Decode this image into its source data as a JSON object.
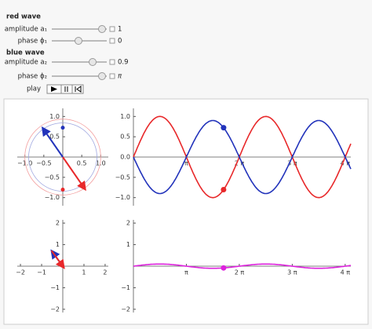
{
  "controls": {
    "red_title": "red wave",
    "a1": {
      "label": "amplitude a₁",
      "value": 1
    },
    "phi1": {
      "label": "phase ϕ₁",
      "value": 0
    },
    "blue_title": "blue wave",
    "a2": {
      "label": "amplitude a₂",
      "value": 0.9
    },
    "phi2": {
      "label": "phase ϕ₂",
      "value": 3.14159,
      "value_label": "π"
    },
    "play": "play"
  },
  "time": 5.35,
  "plots": [
    {
      "type": "phasor",
      "xlim": [
        -1.2,
        1.2
      ],
      "ylim": [
        -1.2,
        1.2
      ],
      "xticks": [
        {
          "value": -1,
          "label": "−1.0"
        },
        {
          "value": -0.5,
          "label": "−0.5"
        },
        0.5,
        {
          "value": 1,
          "label": "1.0"
        }
      ],
      "yticks": [
        {
          "value": -1,
          "label": "−1.0"
        },
        {
          "value": -0.5,
          "label": "−0.5"
        },
        0.5,
        {
          "value": 1,
          "label": "1.0"
        }
      ]
    },
    {
      "type": "waves",
      "xlim": [
        0,
        12.9
      ],
      "ylim": [
        -1.2,
        1.2
      ],
      "xticks": [
        {
          "value": 3.1416,
          "label": "π"
        },
        {
          "value": 6.2832,
          "label": "2 π"
        },
        {
          "value": 9.4248,
          "label": "3 π"
        },
        {
          "value": 12.5664,
          "label": "4 π"
        }
      ],
      "yticks": [
        {
          "value": -1,
          "label": "−1.0"
        },
        {
          "value": -0.5,
          "label": "−0.5"
        },
        {
          "value": 0,
          "label": "0.0"
        },
        0.5,
        {
          "value": 1,
          "label": "1.0"
        }
      ]
    },
    {
      "type": "sum_phasor",
      "xlim": [
        -2.15,
        2.15
      ],
      "ylim": [
        -2.15,
        2.15
      ],
      "xticks": [
        {
          "value": -2,
          "label": "−2"
        },
        {
          "value": -1,
          "label": "−1"
        },
        1,
        2
      ],
      "yticks": [
        {
          "value": -2,
          "label": "−2"
        },
        {
          "value": -1,
          "label": "−1"
        },
        1,
        2
      ]
    },
    {
      "type": "sum_wave",
      "xlim": [
        0,
        12.9
      ],
      "ylim": [
        -2.15,
        2.15
      ],
      "xticks": [
        {
          "value": 3.1416,
          "label": "π"
        },
        {
          "value": 6.2832,
          "label": "2 π"
        },
        {
          "value": 9.4248,
          "label": "3 π"
        },
        {
          "value": 12.5664,
          "label": "4 π"
        }
      ],
      "yticks": [
        {
          "value": -2,
          "label": "−2"
        },
        {
          "value": -1,
          "label": "−1"
        },
        1,
        2
      ]
    }
  ]
}
